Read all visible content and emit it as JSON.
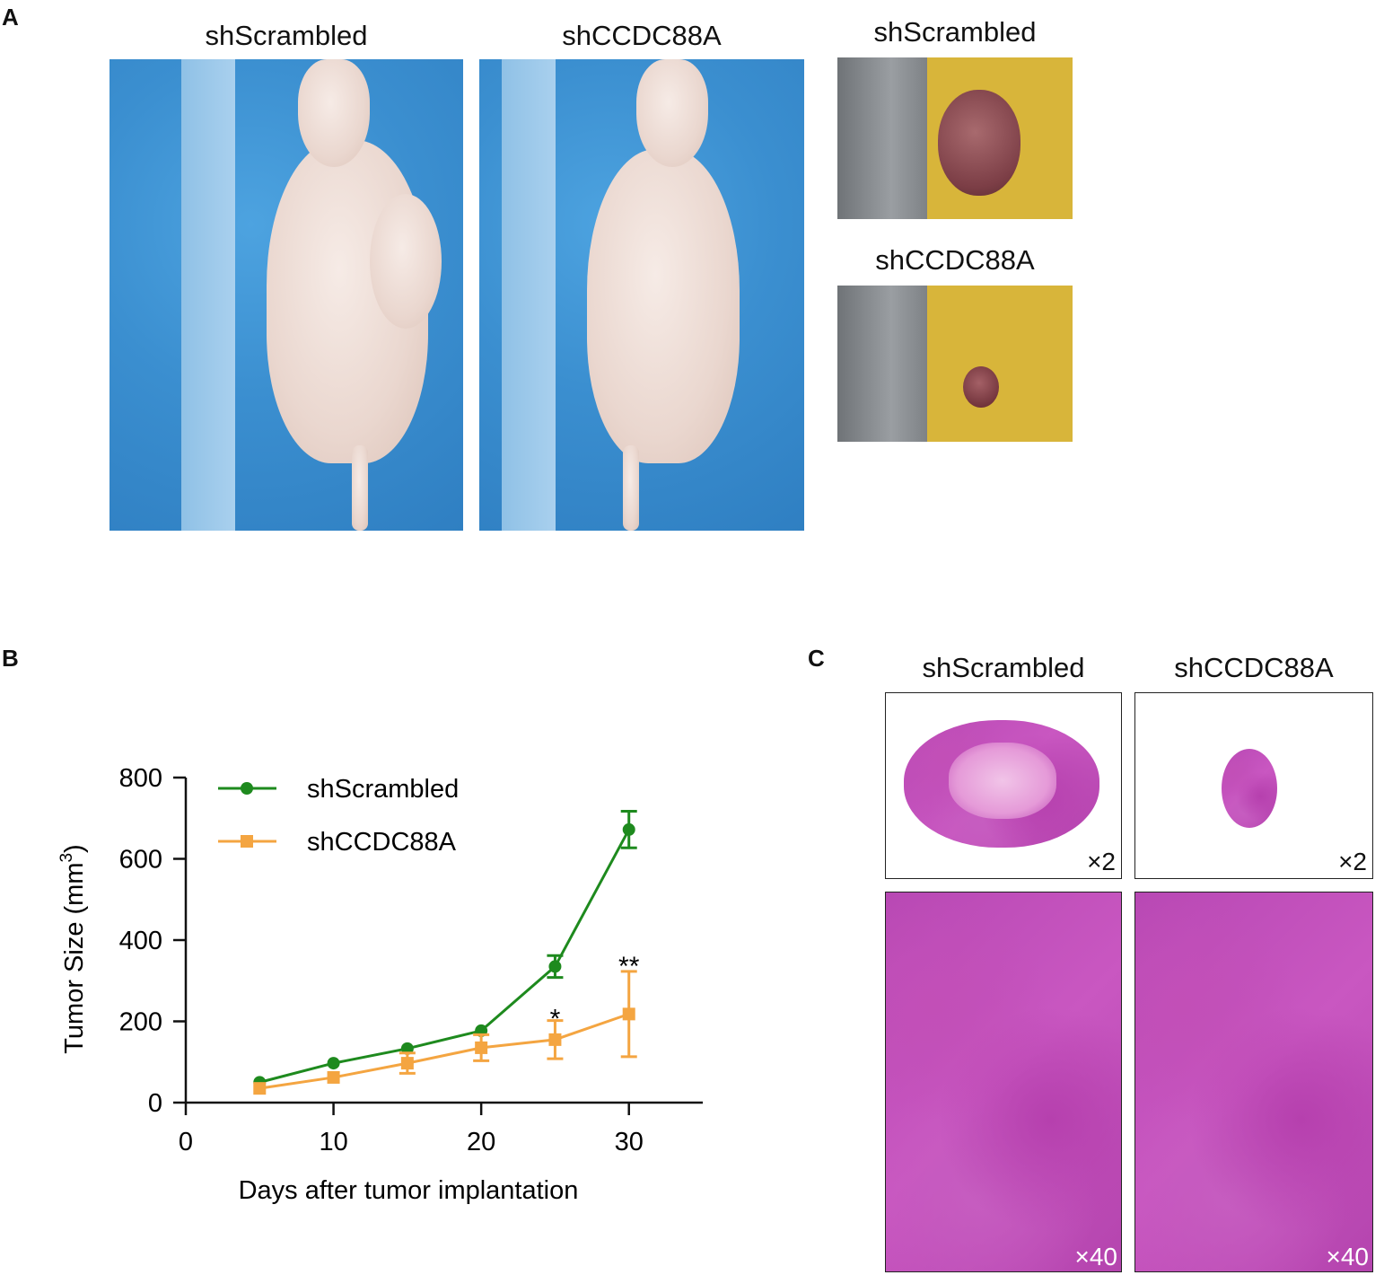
{
  "panels": {
    "a": {
      "letter": "A",
      "mouse_labels": [
        "shScrambled",
        "shCCDC88A"
      ],
      "tumor_labels": [
        "shScrambled",
        "shCCDC88A"
      ]
    },
    "b": {
      "letter": "B"
    },
    "c": {
      "letter": "C",
      "column_labels": [
        "shScrambled",
        "shCCDC88A"
      ],
      "low_mag": "×2",
      "high_mag": "×40"
    }
  },
  "chart_data": {
    "type": "line",
    "xlabel": "Days after tumor implantation",
    "ylabel": "Tumor Size (mm",
    "ylabel_sup": "3",
    "ylabel_close": ")",
    "xlim": [
      0,
      35
    ],
    "ylim": [
      0,
      800
    ],
    "xticks": [
      0,
      10,
      20,
      30
    ],
    "yticks": [
      0,
      200,
      400,
      600,
      800
    ],
    "legend": "top-left",
    "series": [
      {
        "name": "shScrambled",
        "color": "#1e8a1e",
        "marker": "circle",
        "points": [
          {
            "x": 5,
            "y": 50,
            "err": 0
          },
          {
            "x": 10,
            "y": 97,
            "err": 0
          },
          {
            "x": 15,
            "y": 133,
            "err": 0
          },
          {
            "x": 20,
            "y": 177,
            "err": 0
          },
          {
            "x": 25,
            "y": 335,
            "err": 27
          },
          {
            "x": 30,
            "y": 672,
            "err": 45
          }
        ]
      },
      {
        "name": "shCCDC88A",
        "color": "#f4a541",
        "marker": "square",
        "points": [
          {
            "x": 5,
            "y": 35,
            "err": 0
          },
          {
            "x": 10,
            "y": 62,
            "err": 0
          },
          {
            "x": 15,
            "y": 97,
            "err": 25
          },
          {
            "x": 20,
            "y": 135,
            "err": 32
          },
          {
            "x": 25,
            "y": 155,
            "err": 47
          },
          {
            "x": 30,
            "y": 218,
            "err": 105
          }
        ]
      }
    ],
    "annotations": [
      {
        "x": 25,
        "y": 215,
        "text": "*"
      },
      {
        "x": 30,
        "y": 345,
        "text": "**"
      }
    ]
  }
}
